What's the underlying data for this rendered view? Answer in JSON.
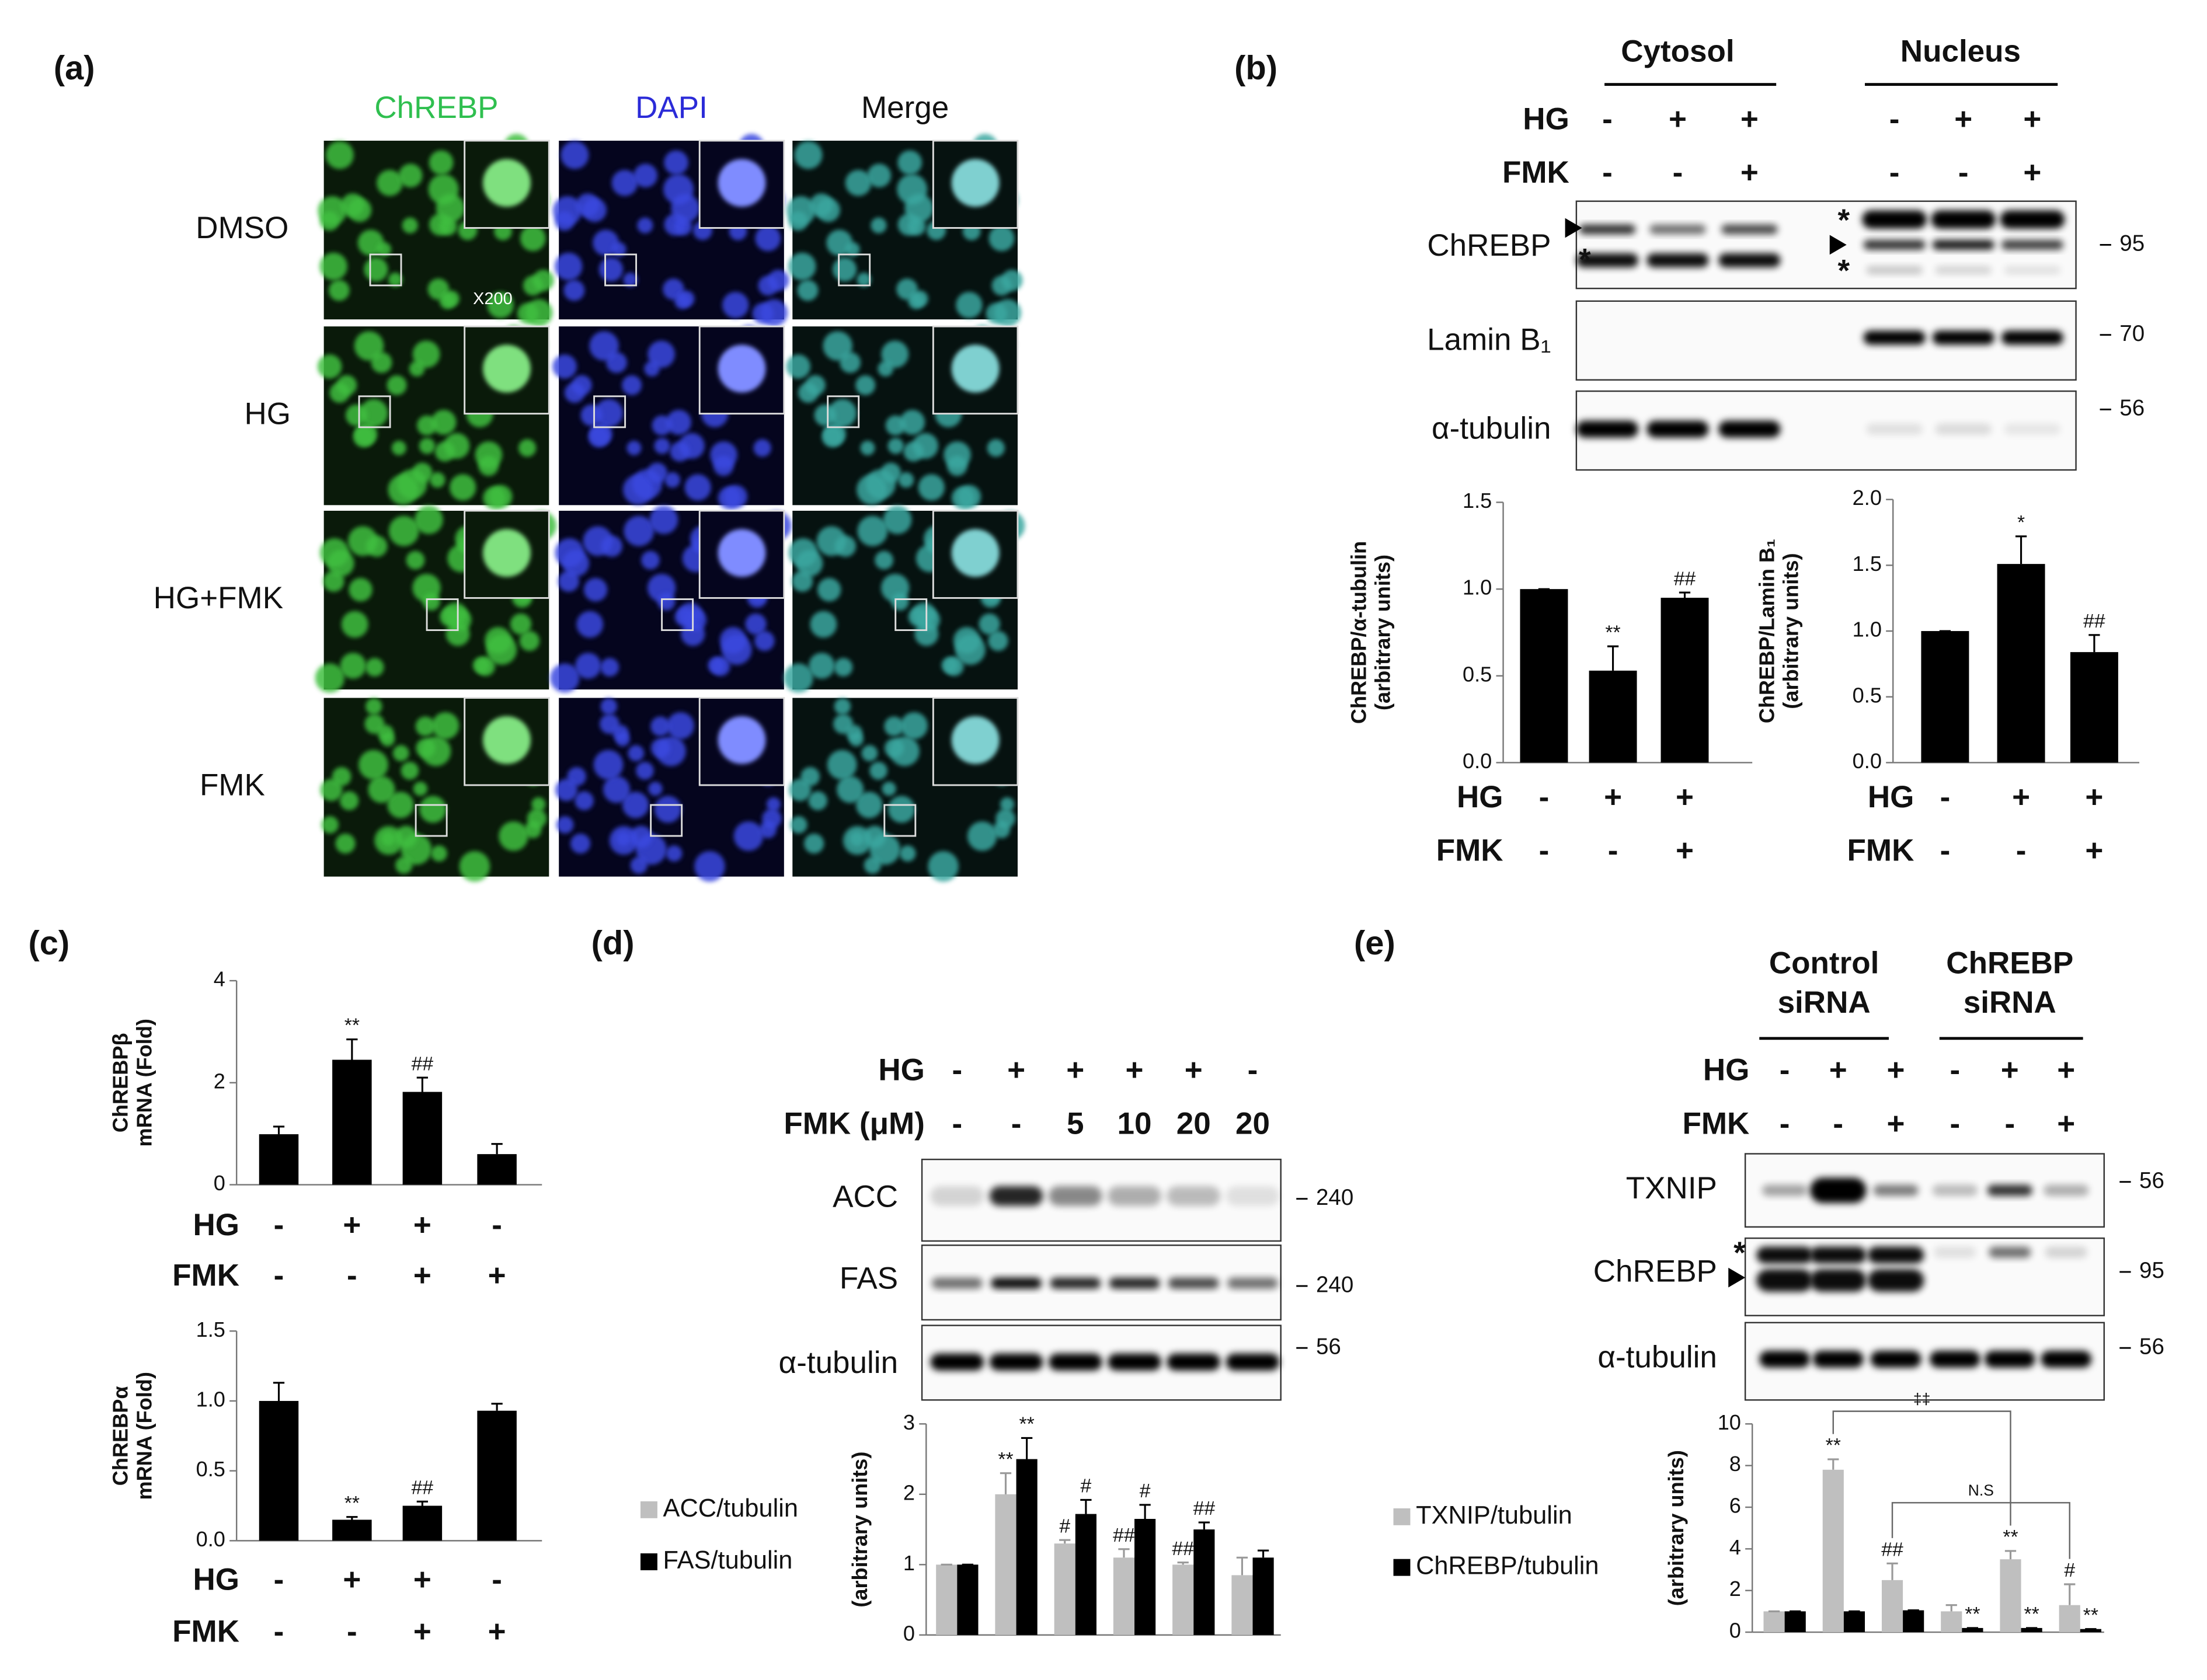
{
  "panel_labels": [
    "(a)",
    "(b)",
    "(c)",
    "(d)",
    "(e)"
  ],
  "panel_a": {
    "columns": [
      "ChREBP",
      "DAPI",
      "Merge"
    ],
    "rows": [
      "DMSO",
      "HG",
      "HG+FMK",
      "FMK"
    ],
    "magnification": "X200"
  },
  "panel_b_blot": {
    "fractions": [
      "Cytosol",
      "Nucleus"
    ],
    "conditions": [
      {
        "name": "HG",
        "values": [
          "-",
          "+",
          "+",
          "-",
          "+",
          "+"
        ]
      },
      {
        "name": "FMK",
        "values": [
          "-",
          "-",
          "+",
          "-",
          "-",
          "+"
        ]
      }
    ],
    "bands": [
      "ChREBP",
      "Lamin B₁",
      "α-tubulin"
    ],
    "markers": [
      95,
      70,
      56
    ],
    "asterisk": "*"
  },
  "panel_d_blot": {
    "conditions": [
      {
        "name": "HG",
        "values": [
          "-",
          "+",
          "+",
          "+",
          "+",
          "-"
        ]
      },
      {
        "name": "FMK (μM)",
        "values": [
          "-",
          "-",
          "5",
          "10",
          "20",
          "20"
        ]
      }
    ],
    "bands": [
      "ACC",
      "FAS",
      "α-tubulin"
    ],
    "markers": [
      240,
      240,
      56
    ]
  },
  "panel_e_blot": {
    "groups": [
      [
        "Control",
        "siRNA"
      ],
      [
        "ChREBP",
        "siRNA"
      ]
    ],
    "conditions": [
      {
        "name": "HG",
        "values": [
          "-",
          "+",
          "+",
          "-",
          "+",
          "+"
        ]
      },
      {
        "name": "FMK",
        "values": [
          "-",
          "-",
          "+",
          "-",
          "-",
          "+"
        ]
      }
    ],
    "bands": [
      "TXNIP",
      "ChREBP",
      "α-tubulin"
    ],
    "markers": [
      56,
      95,
      56
    ],
    "asterisk": "*"
  },
  "chart_data": [
    {
      "type": "bar",
      "ylabel": [
        "ChREBP/α-tubulin",
        "(arbitrary units)"
      ],
      "conditions": [
        {
          "name": "HG",
          "values": [
            "-",
            "+",
            "+"
          ]
        },
        {
          "name": "FMK",
          "values": [
            "-",
            "-",
            "+"
          ]
        }
      ],
      "values": [
        1.0,
        0.53,
        0.95
      ],
      "errors": [
        0,
        0.14,
        0.03
      ],
      "significance": [
        null,
        "**",
        "##"
      ],
      "color": "#000000",
      "ylim": [
        0,
        1.5
      ],
      "yticks": [
        {
          "value": 0,
          "label": "0.0"
        },
        {
          "value": 0.5,
          "label": "0.5"
        },
        {
          "value": 1,
          "label": "1.0"
        },
        {
          "value": 1.5,
          "label": "1.5"
        }
      ]
    },
    {
      "type": "bar",
      "ylabel": [
        "ChREBP/Lamin B₁",
        "(arbitrary units)"
      ],
      "conditions": [
        {
          "name": "HG",
          "values": [
            "-",
            "+",
            "+"
          ]
        },
        {
          "name": "FMK",
          "values": [
            "-",
            "-",
            "+"
          ]
        }
      ],
      "values": [
        1.0,
        1.51,
        0.84
      ],
      "errors": [
        0,
        0.21,
        0.13
      ],
      "significance": [
        null,
        "*",
        "##"
      ],
      "color": "#000000",
      "ylim": [
        0,
        2
      ],
      "yticks": [
        {
          "value": 0,
          "label": "0.0"
        },
        {
          "value": 0.5,
          "label": "0.5"
        },
        {
          "value": 1,
          "label": "1.0"
        },
        {
          "value": 1.5,
          "label": "1.5"
        },
        {
          "value": 2,
          "label": "2.0"
        }
      ]
    },
    {
      "type": "bar",
      "ylabel": [
        "ChREBPβ",
        "mRNA (Fold)"
      ],
      "conditions": [
        {
          "name": "HG",
          "values": [
            "-",
            "+",
            "+",
            "-"
          ]
        },
        {
          "name": "FMK",
          "values": [
            "-",
            "-",
            "+",
            "+"
          ]
        }
      ],
      "values": [
        0.99,
        2.45,
        1.82,
        0.6
      ],
      "errors": [
        0.15,
        0.4,
        0.28,
        0.2
      ],
      "significance": [
        null,
        "**",
        "##",
        null
      ],
      "color": "#000000",
      "ylim": [
        0,
        4
      ],
      "yticks": [
        0,
        2,
        4
      ]
    },
    {
      "type": "bar",
      "ylabel": [
        "ChREBPα",
        "mRNA (Fold)"
      ],
      "conditions": [
        {
          "name": "HG",
          "values": [
            "-",
            "+",
            "+",
            "-"
          ]
        },
        {
          "name": "FMK",
          "values": [
            "-",
            "-",
            "+",
            "+"
          ]
        }
      ],
      "values": [
        1.0,
        0.15,
        0.25,
        0.93
      ],
      "errors": [
        0.13,
        0.02,
        0.03,
        0.05
      ],
      "significance": [
        null,
        "**",
        "##",
        null
      ],
      "color": "#000000",
      "ylim": [
        0,
        1.5
      ],
      "yticks": [
        {
          "value": 0,
          "label": "0.0"
        },
        {
          "value": 0.5,
          "label": "0.5"
        },
        {
          "value": 1,
          "label": "1.0"
        },
        {
          "value": 1.5,
          "label": "1.5"
        }
      ]
    },
    {
      "type": "grouped-bar",
      "ylabel": [
        "(arbitrary units)"
      ],
      "series": [
        {
          "name": "ACC/tubulin",
          "color": "#bfbfbf",
          "values": [
            1.0,
            2.0,
            1.3,
            1.1,
            1.0,
            0.85
          ],
          "errors": [
            0,
            0.3,
            0.05,
            0.12,
            0.03,
            0.25
          ],
          "significance": [
            null,
            "**",
            "#",
            "##",
            "##",
            null
          ]
        },
        {
          "name": "FAS/tubulin",
          "color": "#000000",
          "values": [
            1.0,
            2.5,
            1.72,
            1.65,
            1.5,
            1.1
          ],
          "errors": [
            0,
            0.3,
            0.2,
            0.2,
            0.1,
            0.1
          ],
          "significance": [
            null,
            "**",
            "#",
            "#",
            "##",
            null
          ]
        }
      ],
      "ylim": [
        0,
        3
      ],
      "yticks": [
        0,
        1,
        2,
        3
      ]
    },
    {
      "type": "grouped-bar",
      "ylabel": [
        "(arbitrary units)"
      ],
      "series": [
        {
          "name": "TXNIP/tubulin",
          "color": "#bfbfbf",
          "values": [
            1.0,
            7.8,
            2.5,
            1.0,
            3.5,
            1.3
          ],
          "errors": [
            0,
            0.5,
            0.8,
            0.3,
            0.4,
            1.0
          ],
          "significance": [
            null,
            "**",
            "##",
            null,
            "**",
            "#"
          ]
        },
        {
          "name": "ChREBP/tubulin",
          "color": "#000000",
          "values": [
            1.0,
            1.0,
            1.05,
            0.2,
            0.2,
            0.15
          ],
          "errors": [
            0,
            0,
            0,
            0,
            0,
            0
          ],
          "significance": [
            null,
            null,
            null,
            "**",
            "**",
            "**"
          ]
        }
      ],
      "comparisons": [
        "‡‡",
        "N.S"
      ],
      "ylim": [
        0,
        10
      ],
      "yticks": [
        0,
        2,
        4,
        6,
        8,
        10
      ]
    }
  ]
}
